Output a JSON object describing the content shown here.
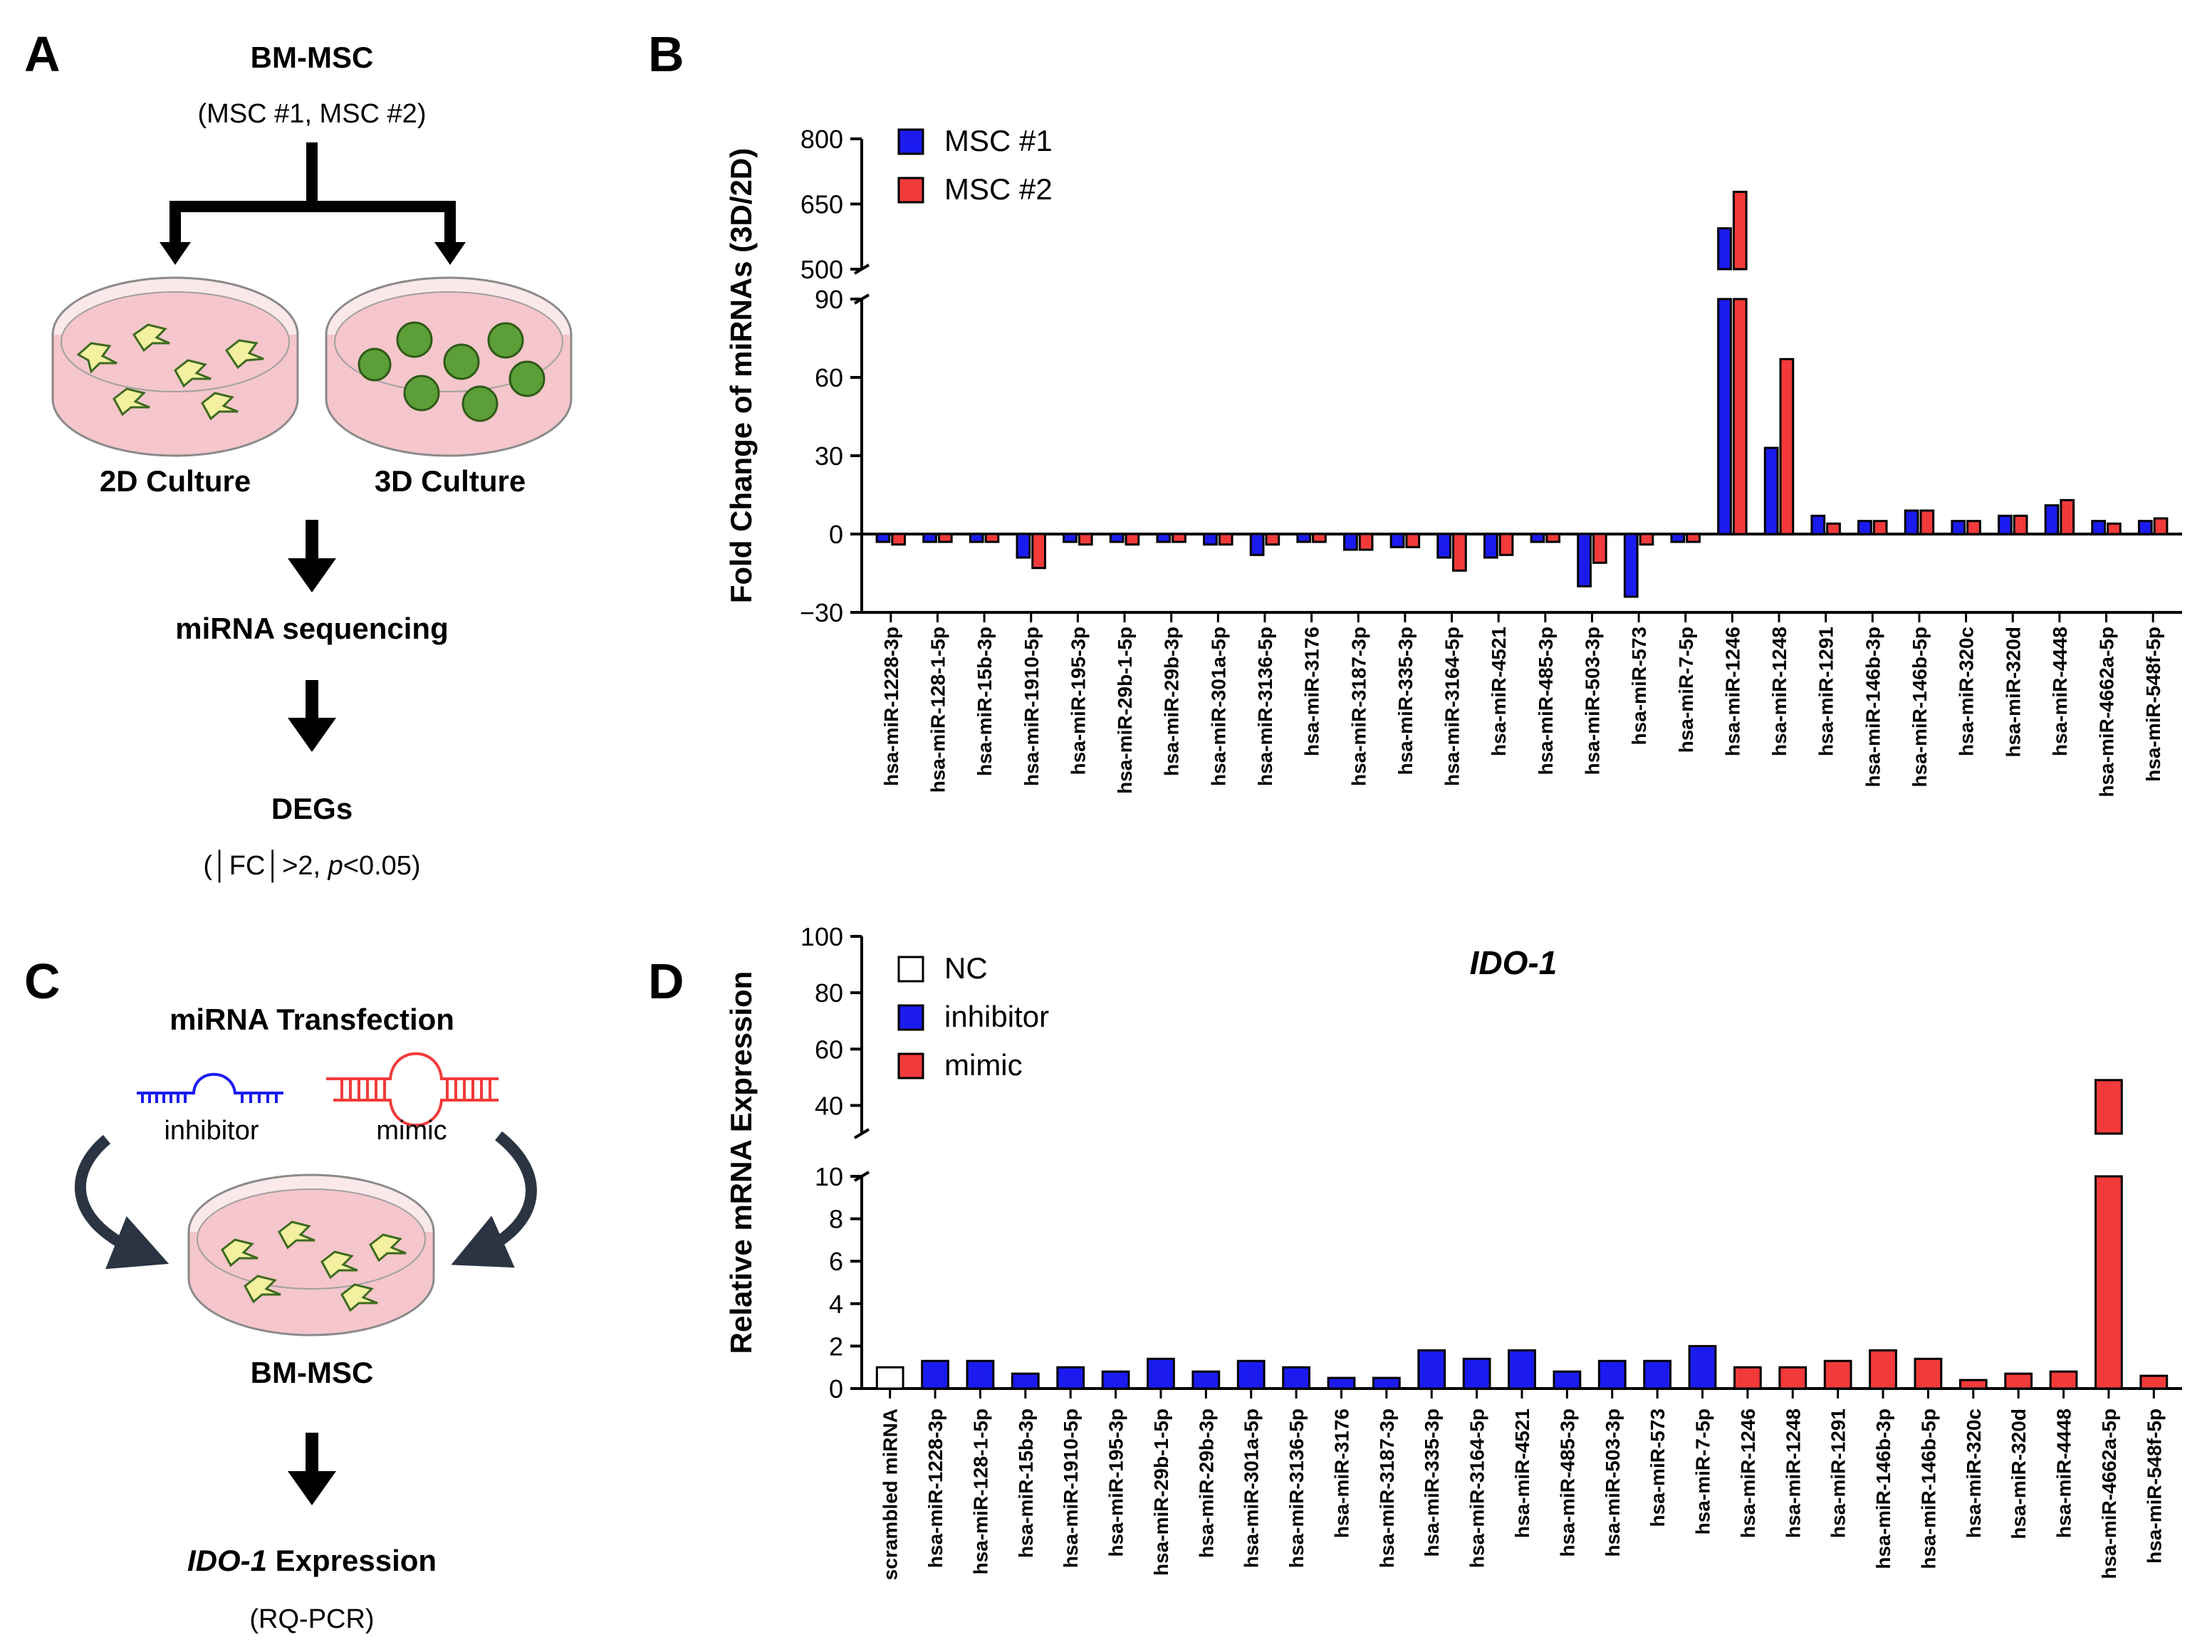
{
  "colors": {
    "blue": "#1b1bf0",
    "red": "#f23a3a",
    "dish_pink": "#f5c6cc",
    "dish_rim": "#8a8a8a",
    "cell_fill": "#f3f0a0",
    "cell_edge": "#3d6b1f",
    "spheroid": "#5c9e37",
    "arrow": "#000000",
    "curve_arrow": "#2b3443"
  },
  "icons": {
    "dish_2d": "petri-dish-with-flat-cells",
    "dish_3d": "petri-dish-with-spheroids",
    "inhibitor": "blue-short-hairpin-rna",
    "mimic": "red-hairpin-rna-duplex",
    "curved_arrow": "curved-arrow"
  },
  "panels": {
    "a": {
      "letter": "A",
      "title": "BM-MSC",
      "subtitle": "(MSC #1, MSC #2)",
      "left_label": "2D Culture",
      "right_label": "3D Culture",
      "step1": "miRNA sequencing",
      "step2": "DEGs",
      "criteria_prefix": "(│FC│>2, ",
      "criteria_p": "p",
      "criteria_suffix": "<0.05)"
    },
    "b": {
      "letter": "B"
    },
    "c": {
      "letter": "C",
      "title": "miRNA Transfection",
      "inhibitor_label": "inhibitor",
      "mimic_label": "mimic",
      "cell_label": "BM-MSC",
      "result_gene": "IDO-1",
      "result_suffix": " Expression",
      "method": "(RQ-PCR)"
    },
    "d": {
      "letter": "D"
    }
  },
  "chart_data": [
    {
      "type": "bar",
      "panel": "B",
      "title": "",
      "xlabel": "",
      "ylabel": "Fold Change of miRNAs (3D/2D)",
      "axis_break": {
        "lower": [
          -30,
          90
        ],
        "upper": [
          500,
          800
        ]
      },
      "lower_ticks": [
        -30,
        0,
        30,
        60,
        90
      ],
      "upper_ticks": [
        500,
        650,
        800
      ],
      "legend_position": "top-left",
      "categories": [
        "hsa-miR-1228-3p",
        "hsa-miR-128-1-5p",
        "hsa-miR-15b-3p",
        "hsa-miR-1910-5p",
        "hsa-miR-195-3p",
        "hsa-miR-29b-1-5p",
        "hsa-miR-29b-3p",
        "hsa-miR-301a-5p",
        "hsa-miR-3136-5p",
        "hsa-miR-3176",
        "hsa-miR-3187-3p",
        "hsa-miR-335-3p",
        "hsa-miR-3164-5p",
        "hsa-miR-4521",
        "hsa-miR-485-3p",
        "hsa-miR-503-3p",
        "hsa-miR-573",
        "hsa-miR-7-5p",
        "hsa-miR-1246",
        "hsa-miR-1248",
        "hsa-miR-1291",
        "hsa-miR-146b-3p",
        "hsa-miR-146b-5p",
        "hsa-miR-320c",
        "hsa-miR-320d",
        "hsa-miR-4448",
        "hsa-miR-4662a-5p",
        "hsa-miR-548f-5p"
      ],
      "series": [
        {
          "name": "MSC #1",
          "color": "#1b1bf0",
          "values": [
            -3,
            -3,
            -3,
            -9,
            -3,
            -3,
            -3,
            -4,
            -8,
            -3,
            -6,
            -5,
            -9,
            -9,
            -3,
            -20,
            -24,
            -3,
            594,
            33,
            7,
            5,
            9,
            5,
            7,
            11,
            5,
            5
          ]
        },
        {
          "name": "MSC #2",
          "color": "#f23a3a",
          "values": [
            -4,
            -3,
            -3,
            -13,
            -4,
            -4,
            -3,
            -4,
            -4,
            -3,
            -6,
            -5,
            -14,
            -8,
            -3,
            -11,
            -4,
            -3,
            678,
            67,
            4,
            5,
            9,
            5,
            7,
            13,
            4,
            6
          ]
        }
      ]
    },
    {
      "type": "bar",
      "panel": "D",
      "title": "IDO-1",
      "xlabel": "",
      "ylabel": "Relative mRNA Expression",
      "axis_break": {
        "lower": [
          0,
          10
        ],
        "upper": [
          30,
          100
        ]
      },
      "lower_ticks": [
        0,
        2,
        4,
        6,
        8,
        10
      ],
      "upper_ticks": [
        40,
        60,
        80,
        100
      ],
      "legend_position": "top-left",
      "legend": [
        {
          "name": "NC",
          "color": "#ffffff"
        },
        {
          "name": "inhibitor",
          "color": "#1b1bf0"
        },
        {
          "name": "mimic",
          "color": "#f23a3a"
        }
      ],
      "categories": [
        "scrambled miRNA",
        "hsa-miR-1228-3p",
        "hsa-miR-128-1-5p",
        "hsa-miR-15b-3p",
        "hsa-miR-1910-5p",
        "hsa-miR-195-3p",
        "hsa-miR-29b-1-5p",
        "hsa-miR-29b-3p",
        "hsa-miR-301a-5p",
        "hsa-miR-3136-5p",
        "hsa-miR-3176",
        "hsa-miR-3187-3p",
        "hsa-miR-335-3p",
        "hsa-miR-3164-5p",
        "hsa-miR-4521",
        "hsa-miR-485-3p",
        "hsa-miR-503-3p",
        "hsa-miR-573",
        "hsa-miR-7-5p",
        "hsa-miR-1246",
        "hsa-miR-1248",
        "hsa-miR-1291",
        "hsa-miR-146b-3p",
        "hsa-miR-146b-5p",
        "hsa-miR-320c",
        "hsa-miR-320d",
        "hsa-miR-4448",
        "hsa-miR-4662a-5p",
        "hsa-miR-548f-5p"
      ],
      "values": [
        1.0,
        1.3,
        1.3,
        0.7,
        1.0,
        0.8,
        1.4,
        0.8,
        1.3,
        1.0,
        0.5,
        0.5,
        1.8,
        1.4,
        1.8,
        0.8,
        1.3,
        1.3,
        2.0,
        1.0,
        1.0,
        1.3,
        1.8,
        1.4,
        0.4,
        0.7,
        0.8,
        49,
        0.6
      ],
      "groups": [
        "NC",
        "inhibitor",
        "inhibitor",
        "inhibitor",
        "inhibitor",
        "inhibitor",
        "inhibitor",
        "inhibitor",
        "inhibitor",
        "inhibitor",
        "inhibitor",
        "inhibitor",
        "inhibitor",
        "inhibitor",
        "inhibitor",
        "inhibitor",
        "inhibitor",
        "inhibitor",
        "inhibitor",
        "mimic",
        "mimic",
        "mimic",
        "mimic",
        "mimic",
        "mimic",
        "mimic",
        "mimic",
        "mimic",
        "mimic"
      ]
    }
  ]
}
